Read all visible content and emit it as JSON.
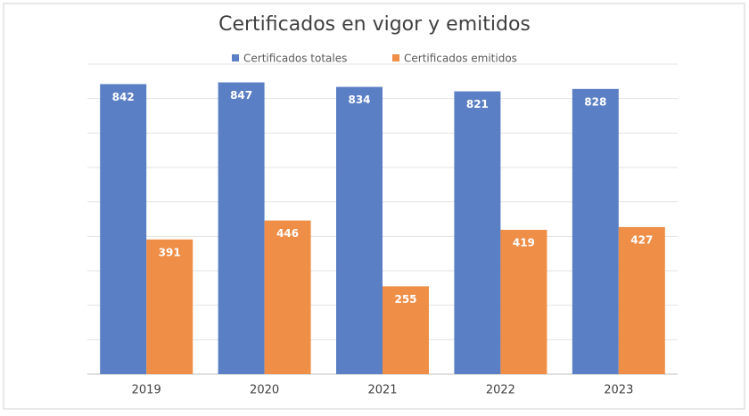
{
  "chart_data": {
    "type": "bar",
    "title": "Certificados en vigor y emitidos",
    "categories": [
      "2019",
      "2020",
      "2021",
      "2022",
      "2023"
    ],
    "series": [
      {
        "name": "Certificados totales",
        "color": "#5b7fc4",
        "values": [
          842,
          847,
          834,
          821,
          828
        ]
      },
      {
        "name": "Certificados emitidos",
        "color": "#ee8e47",
        "values": [
          391,
          446,
          255,
          419,
          427
        ]
      }
    ],
    "ylim": [
      0,
      900
    ],
    "yticks": [
      0,
      100,
      200,
      300,
      400,
      500,
      600,
      700,
      800,
      900
    ],
    "grid": true,
    "legend": "top"
  }
}
